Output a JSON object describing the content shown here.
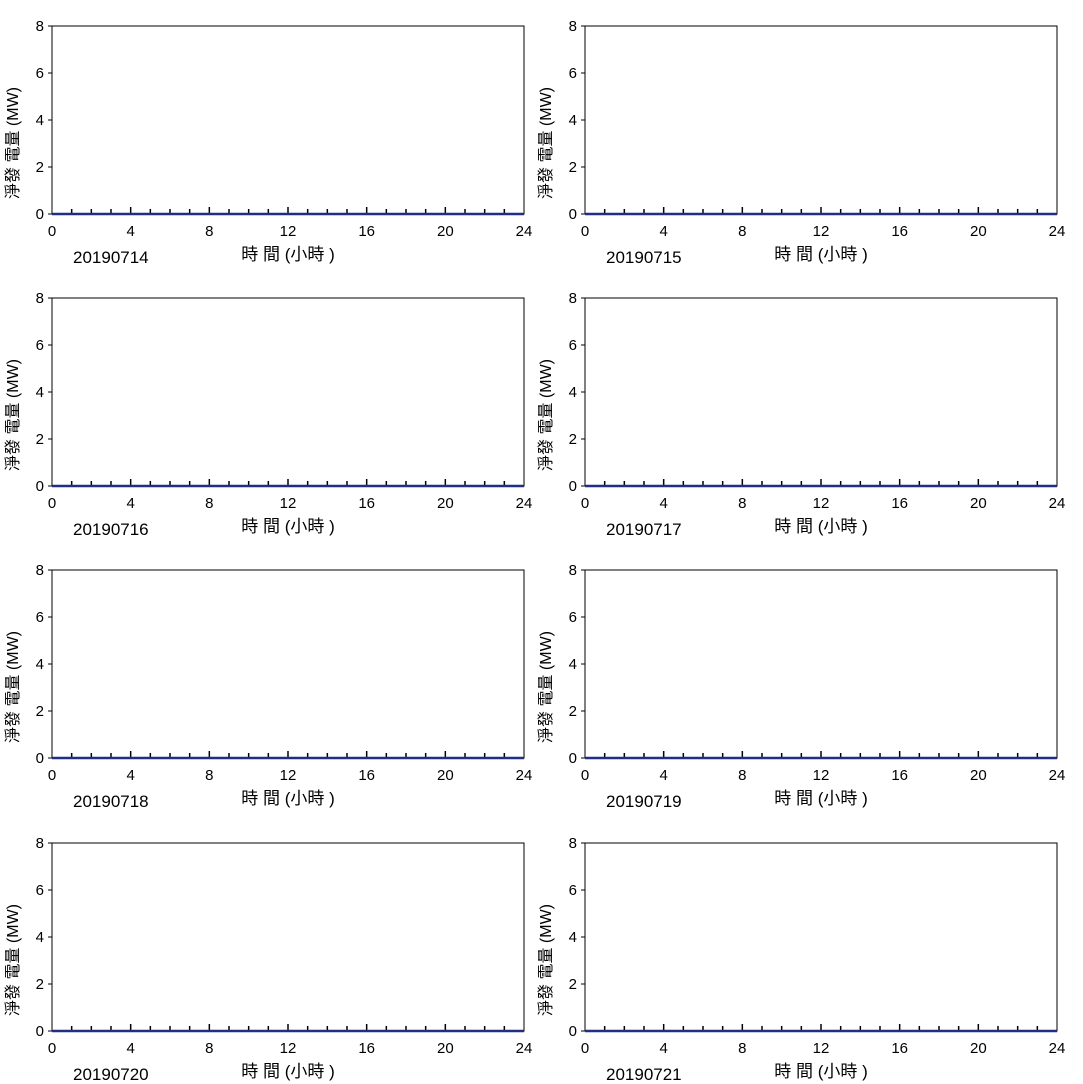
{
  "chart_data": [
    {
      "type": "line",
      "date_label": "20190714",
      "xlabel": "時 間 (小時 )",
      "ylabel": "淨發 電量 (MW)",
      "xlim": [
        0,
        24
      ],
      "ylim": [
        0,
        8
      ],
      "xticks": [
        0,
        4,
        8,
        12,
        16,
        20,
        24
      ],
      "yticks": [
        0,
        2,
        4,
        6,
        8
      ],
      "x": [
        0,
        24
      ],
      "values": [
        0,
        0
      ],
      "grid": false
    },
    {
      "type": "line",
      "date_label": "20190715",
      "xlabel": "時 間 (小時 )",
      "ylabel": "淨發 電量 (MW)",
      "xlim": [
        0,
        24
      ],
      "ylim": [
        0,
        8
      ],
      "xticks": [
        0,
        4,
        8,
        12,
        16,
        20,
        24
      ],
      "yticks": [
        0,
        2,
        4,
        6,
        8
      ],
      "x": [
        0,
        24
      ],
      "values": [
        0,
        0
      ],
      "grid": false
    },
    {
      "type": "line",
      "date_label": "20190716",
      "xlabel": "時 間 (小時 )",
      "ylabel": "淨發 電量 (MW)",
      "xlim": [
        0,
        24
      ],
      "ylim": [
        0,
        8
      ],
      "xticks": [
        0,
        4,
        8,
        12,
        16,
        20,
        24
      ],
      "yticks": [
        0,
        2,
        4,
        6,
        8
      ],
      "x": [
        0,
        24
      ],
      "values": [
        0,
        0
      ],
      "grid": false
    },
    {
      "type": "line",
      "date_label": "20190717",
      "xlabel": "時 間 (小時 )",
      "ylabel": "淨發 電量 (MW)",
      "xlim": [
        0,
        24
      ],
      "ylim": [
        0,
        8
      ],
      "xticks": [
        0,
        4,
        8,
        12,
        16,
        20,
        24
      ],
      "yticks": [
        0,
        2,
        4,
        6,
        8
      ],
      "x": [
        0,
        24
      ],
      "values": [
        0,
        0
      ],
      "grid": false
    },
    {
      "type": "line",
      "date_label": "20190718",
      "xlabel": "時 間 (小時 )",
      "ylabel": "淨發 電量 (MW)",
      "xlim": [
        0,
        24
      ],
      "ylim": [
        0,
        8
      ],
      "xticks": [
        0,
        4,
        8,
        12,
        16,
        20,
        24
      ],
      "yticks": [
        0,
        2,
        4,
        6,
        8
      ],
      "x": [
        0,
        24
      ],
      "values": [
        0,
        0
      ],
      "grid": false
    },
    {
      "type": "line",
      "date_label": "20190719",
      "xlabel": "時 間 (小時 )",
      "ylabel": "淨發 電量 (MW)",
      "xlim": [
        0,
        24
      ],
      "ylim": [
        0,
        8
      ],
      "xticks": [
        0,
        4,
        8,
        12,
        16,
        20,
        24
      ],
      "yticks": [
        0,
        2,
        4,
        6,
        8
      ],
      "x": [
        0,
        24
      ],
      "values": [
        0,
        0
      ],
      "grid": false
    },
    {
      "type": "line",
      "date_label": "20190720",
      "xlabel": "時 間 (小時 )",
      "ylabel": "淨發 電量 (MW)",
      "xlim": [
        0,
        24
      ],
      "ylim": [
        0,
        8
      ],
      "xticks": [
        0,
        4,
        8,
        12,
        16,
        20,
        24
      ],
      "yticks": [
        0,
        2,
        4,
        6,
        8
      ],
      "x": [
        0,
        24
      ],
      "values": [
        0,
        0
      ],
      "grid": false
    },
    {
      "type": "line",
      "date_label": "20190721",
      "xlabel": "時 間 (小時 )",
      "ylabel": "淨發 電量 (MW)",
      "xlim": [
        0,
        24
      ],
      "ylim": [
        0,
        8
      ],
      "xticks": [
        0,
        4,
        8,
        12,
        16,
        20,
        24
      ],
      "yticks": [
        0,
        2,
        4,
        6,
        8
      ],
      "x": [
        0,
        24
      ],
      "values": [
        0,
        0
      ],
      "grid": false
    }
  ],
  "colors": {
    "series": "#1f2f86",
    "axis": "#000000",
    "text": "#000000",
    "background": "#ffffff"
  }
}
